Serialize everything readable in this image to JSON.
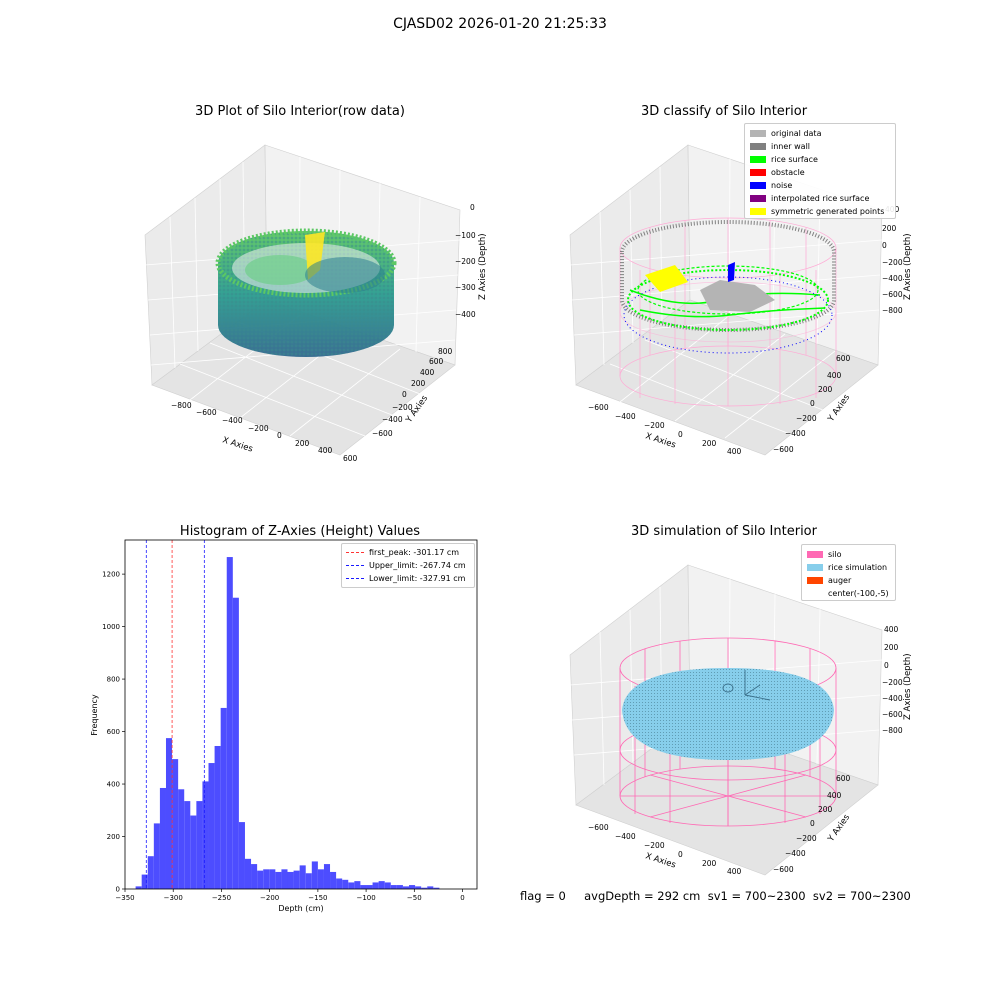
{
  "figure": {
    "suptitle": "CJASD02 2026-01-20 21:25:33",
    "footer": "flag = 0     avgDepth = 292 cm  sv1 = 700~2300  sv2 = 700~2300"
  },
  "colors": {
    "hist_bar": "#4d4dff",
    "first_peak": "#ff3333",
    "limits": "#1a1aff",
    "viridis_low": "#31688e",
    "viridis_mid": "#35b779",
    "viridis_high": "#fde725",
    "silo": "#ff69b4",
    "rice": "#87ceeb",
    "auger": "#ff4500",
    "original": "#b4b4b4",
    "inner_wall": "#808080",
    "rice_surface": "#00ff00",
    "obstacle": "#ff0000",
    "noise": "#0000ff",
    "interpolated": "#800080",
    "symmetric": "#ffff00"
  },
  "plot1": {
    "title": "3D Plot of Silo Interior(row data)",
    "xlabel": "X Axies",
    "ylabel": "Y Axies",
    "zlabel": "Z Axies (Depth)",
    "xticks": [
      "−800",
      "−600",
      "−400",
      "−200",
      "0",
      "200",
      "400",
      "600"
    ],
    "yticks": [
      "−600",
      "−400",
      "−200",
      "0",
      "200",
      "400",
      "600",
      "800"
    ],
    "zticks": [
      "0",
      "−100",
      "−200",
      "−300",
      "−400"
    ]
  },
  "plot2": {
    "title": "3D classify of Silo Interior",
    "xlabel": "X Axies",
    "ylabel": "Y Axies",
    "zlabel": "Z Axies (Depth)",
    "xticks": [
      "−600",
      "−400",
      "−200",
      "0",
      "200",
      "400"
    ],
    "yticks": [
      "−600",
      "−400",
      "−200",
      "0",
      "200",
      "400",
      "600"
    ],
    "zticks": [
      "200",
      "0",
      "−200",
      "−400",
      "−600",
      "−800"
    ],
    "zticks_extra": "400",
    "legend": [
      {
        "label": "original data",
        "color": "#b4b4b4"
      },
      {
        "label": "inner wall",
        "color": "#808080"
      },
      {
        "label": "rice surface",
        "color": "#00ff00"
      },
      {
        "label": "obstacle",
        "color": "#ff0000"
      },
      {
        "label": "noise",
        "color": "#0000ff"
      },
      {
        "label": "interpolated rice surface",
        "color": "#800080"
      },
      {
        "label": "symmetric generated points",
        "color": "#ffff00"
      }
    ]
  },
  "plot4": {
    "title": "3D simulation of Silo Interior",
    "xlabel": "X Axies",
    "ylabel": "Y Axies",
    "zlabel": "Z Axies (Depth)",
    "xticks": [
      "−600",
      "−400",
      "−200",
      "0",
      "200",
      "400"
    ],
    "yticks": [
      "−600",
      "−400",
      "−200",
      "0",
      "200",
      "400",
      "600"
    ],
    "zticks": [
      "400",
      "200",
      "0",
      "−200",
      "−400",
      "−600",
      "−800"
    ],
    "legend": [
      {
        "label": "silo",
        "color": "#ff69b4"
      },
      {
        "label": "rice simulation",
        "color": "#87ceeb"
      },
      {
        "label": "auger",
        "color": "#ff4500"
      },
      {
        "label": "center(-100,-5)",
        "color": ""
      }
    ]
  },
  "chart_data": {
    "type": "bar",
    "title": "Histogram of Z-Axies (Height) Values",
    "xlabel": "Depth (cm)",
    "ylabel": "Frequency",
    "xlim": [
      -350,
      15
    ],
    "ylim": [
      0,
      1330
    ],
    "xticks": [
      -350,
      -300,
      -250,
      -200,
      -150,
      -100,
      -50,
      0
    ],
    "yticks": [
      0,
      200,
      400,
      600,
      800,
      1000,
      1200
    ],
    "bin_width": 6.3,
    "bin_start": -339.0,
    "values": [
      10,
      55,
      125,
      250,
      385,
      575,
      495,
      380,
      335,
      280,
      335,
      410,
      480,
      545,
      690,
      1265,
      1110,
      255,
      115,
      95,
      70,
      75,
      75,
      65,
      75,
      65,
      70,
      90,
      60,
      105,
      75,
      95,
      65,
      40,
      35,
      25,
      30,
      15,
      15,
      25,
      30,
      25,
      15,
      15,
      10,
      15,
      10,
      5,
      10,
      5
    ],
    "vlines": [
      {
        "label": "first_peak: -301.17 cm",
        "value": -301.17,
        "color": "#ff3333"
      },
      {
        "label": "Upper_limit: -267.74 cm",
        "value": -267.74,
        "color": "#1a1aff"
      },
      {
        "label": "Lower_limit: -327.91 cm",
        "value": -327.91,
        "color": "#1a1aff"
      }
    ],
    "legend_position": "upper right"
  }
}
